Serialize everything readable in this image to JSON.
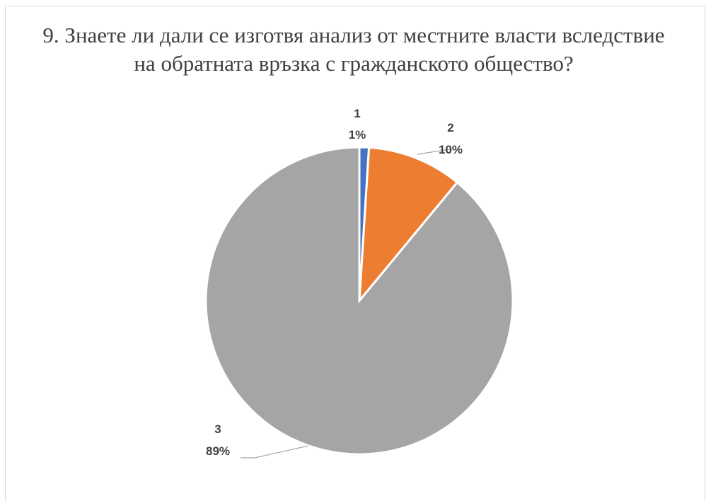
{
  "chart_data": {
    "type": "pie",
    "title": "9. Знаете ли дали се изготвя анализ от местните власти вследствие на обратната връзка с гражданското общество?",
    "categories": [
      "1",
      "2",
      "3"
    ],
    "values": [
      1,
      10,
      89
    ],
    "data_labels": [
      {
        "category": "1",
        "percent": "1%"
      },
      {
        "category": "2",
        "percent": "10%"
      },
      {
        "category": "3",
        "percent": "89%"
      }
    ],
    "colors": [
      "#4472c4",
      "#ed7d31",
      "#a5a5a5"
    ],
    "start": "12 o'clock, clockwise",
    "legend": "none"
  }
}
